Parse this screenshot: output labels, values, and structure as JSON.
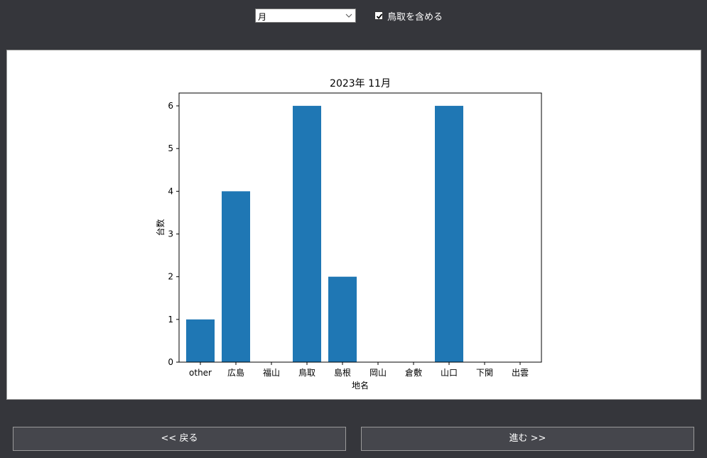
{
  "toolbar": {
    "period_select": {
      "value": "月"
    },
    "include_tottori": {
      "checked": true,
      "label": "鳥取を含める"
    }
  },
  "chart_data": {
    "type": "bar",
    "title": "2023年 11月",
    "xlabel": "地名",
    "ylabel": "台数",
    "categories": [
      "other",
      "広島",
      "福山",
      "鳥取",
      "島根",
      "岡山",
      "倉敷",
      "山口",
      "下関",
      "出雲"
    ],
    "values": [
      1,
      4,
      0,
      6,
      2,
      0,
      0,
      6,
      0,
      0
    ],
    "ylim": [
      0,
      6.3
    ],
    "yticks": [
      0,
      1,
      2,
      3,
      4,
      5,
      6
    ],
    "bar_color": "#1f77b4",
    "grid": false,
    "legend": "none"
  },
  "navigation": {
    "back_label": "<< 戻る",
    "next_label": "進む >>"
  }
}
